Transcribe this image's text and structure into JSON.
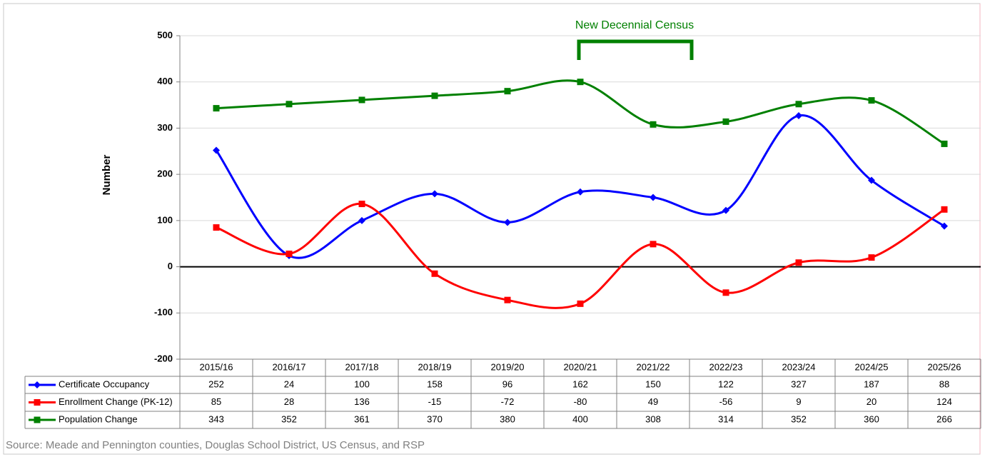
{
  "chart_data": {
    "type": "line",
    "y_label": "Number",
    "annotation": "New Decennial Census",
    "source": "Source: Meade and Pennington counties, Douglas School District, US Census, and RSP",
    "categories": [
      "2015/16",
      "2016/17",
      "2017/18",
      "2018/19",
      "2019/20",
      "2020/21",
      "2021/22",
      "2022/23",
      "2023/24",
      "2024/25",
      "2025/26"
    ],
    "series": [
      {
        "name": "Certificate Occupancy",
        "color": "#0000ff",
        "marker": "diamond",
        "values": [
          252,
          24,
          100,
          158,
          96,
          162,
          150,
          122,
          327,
          187,
          88
        ]
      },
      {
        "name": "Enrollment Change (PK-12)",
        "color": "#ff0000",
        "marker": "square",
        "values": [
          85,
          28,
          136,
          -15,
          -72,
          -80,
          49,
          -56,
          9,
          20,
          124
        ]
      },
      {
        "name": "Population Change",
        "color": "#008000",
        "marker": "square",
        "values": [
          343,
          352,
          361,
          370,
          380,
          400,
          308,
          314,
          352,
          360,
          266
        ]
      }
    ],
    "ylim": [
      -200,
      500
    ],
    "yticks": [
      -200,
      -100,
      0,
      100,
      200,
      300,
      400,
      500
    ],
    "grid": true
  }
}
